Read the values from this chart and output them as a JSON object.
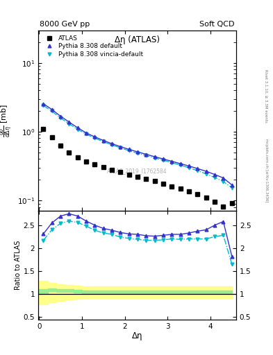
{
  "title_top": "8000 GeV pp",
  "title_right": "Soft QCD",
  "plot_title": "Δη (ATLAS)",
  "xlabel": "Δη",
  "ylabel_main": "$\\frac{d\\sigma}{d\\Delta\\eta}$ [mb]",
  "ylabel_ratio": "Ratio to ATLAS",
  "watermark": "ATLAS_2019_I1762584",
  "rivet_text": "Rivet 3.1.10, ≥ 3.3M events",
  "arxiv_text": "[arXiv:1306.3436]",
  "mcplots_text": "mcplots.cern.ch",
  "atlas_x": [
    0.1,
    0.3,
    0.5,
    0.7,
    0.9,
    1.1,
    1.3,
    1.5,
    1.7,
    1.9,
    2.1,
    2.3,
    2.5,
    2.7,
    2.9,
    3.1,
    3.3,
    3.5,
    3.7,
    3.9,
    4.1,
    4.3,
    4.5
  ],
  "atlas_y": [
    1.1,
    0.82,
    0.62,
    0.5,
    0.42,
    0.37,
    0.335,
    0.305,
    0.278,
    0.258,
    0.238,
    0.22,
    0.205,
    0.19,
    0.175,
    0.16,
    0.148,
    0.135,
    0.122,
    0.11,
    0.095,
    0.082,
    0.092
  ],
  "py_default_x": [
    0.1,
    0.3,
    0.5,
    0.7,
    0.9,
    1.1,
    1.3,
    1.5,
    1.7,
    1.9,
    2.1,
    2.3,
    2.5,
    2.7,
    2.9,
    3.1,
    3.3,
    3.5,
    3.7,
    3.9,
    4.1,
    4.3,
    4.5
  ],
  "py_default_y": [
    2.55,
    2.1,
    1.68,
    1.38,
    1.14,
    0.96,
    0.84,
    0.745,
    0.668,
    0.605,
    0.552,
    0.508,
    0.468,
    0.432,
    0.4,
    0.37,
    0.342,
    0.316,
    0.29,
    0.265,
    0.238,
    0.212,
    0.168
  ],
  "py_vincia_x": [
    0.1,
    0.3,
    0.5,
    0.7,
    0.9,
    1.1,
    1.3,
    1.5,
    1.7,
    1.9,
    2.1,
    2.3,
    2.5,
    2.7,
    2.9,
    3.1,
    3.3,
    3.5,
    3.7,
    3.9,
    4.1,
    4.3,
    4.5
  ],
  "py_vincia_y": [
    2.4,
    1.98,
    1.58,
    1.3,
    1.08,
    0.92,
    0.805,
    0.715,
    0.642,
    0.58,
    0.528,
    0.485,
    0.448,
    0.415,
    0.384,
    0.354,
    0.326,
    0.298,
    0.27,
    0.243,
    0.215,
    0.188,
    0.153
  ],
  "ratio_py_default_y": [
    2.32,
    2.56,
    2.71,
    2.76,
    2.71,
    2.6,
    2.51,
    2.44,
    2.4,
    2.35,
    2.32,
    2.31,
    2.28,
    2.27,
    2.29,
    2.31,
    2.31,
    2.34,
    2.38,
    2.41,
    2.51,
    2.59,
    1.83
  ],
  "ratio_py_vincia_y": [
    2.18,
    2.41,
    2.55,
    2.6,
    2.57,
    2.49,
    2.4,
    2.34,
    2.31,
    2.25,
    2.22,
    2.2,
    2.18,
    2.18,
    2.19,
    2.21,
    2.2,
    2.21,
    2.21,
    2.21,
    2.26,
    2.29,
    1.66
  ],
  "band_x": [
    0.0,
    0.2,
    0.4,
    0.6,
    0.8,
    1.0,
    1.5,
    2.0,
    2.5,
    3.0,
    3.5,
    4.0,
    4.5
  ],
  "band_green_low": [
    1.03,
    1.07,
    1.06,
    1.05,
    1.04,
    1.03,
    1.02,
    1.02,
    1.02,
    1.02,
    1.02,
    1.02,
    1.02
  ],
  "band_green_high": [
    1.12,
    1.13,
    1.12,
    1.11,
    1.1,
    1.09,
    1.09,
    1.09,
    1.09,
    1.09,
    1.09,
    1.09,
    1.09
  ],
  "band_yellow_low": [
    0.78,
    0.83,
    0.86,
    0.88,
    0.9,
    0.91,
    0.91,
    0.91,
    0.91,
    0.91,
    0.91,
    0.91,
    0.91
  ],
  "band_yellow_high": [
    1.3,
    1.25,
    1.22,
    1.2,
    1.19,
    1.18,
    1.18,
    1.18,
    1.18,
    1.18,
    1.18,
    1.18,
    1.18
  ],
  "color_atlas": "#000000",
  "color_py_default": "#3333cc",
  "color_py_vincia": "#00bbcc",
  "color_green": "#90ee90",
  "color_yellow": "#ffff80",
  "main_ylim_log": [
    0.07,
    30
  ],
  "ratio_ylim": [
    0.45,
    2.82
  ],
  "ratio_yticks": [
    0.5,
    1.0,
    1.5,
    2.0,
    2.5
  ],
  "ratio_yticklabels": [
    "0.5",
    "1",
    "1.5",
    "2",
    "2.5"
  ],
  "xlim": [
    -0.02,
    4.6
  ]
}
